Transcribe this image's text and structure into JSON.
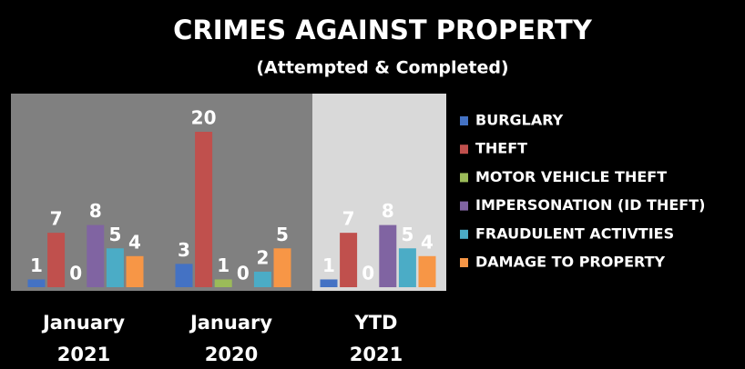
{
  "chart_data": {
    "type": "bar",
    "title": "CRIMES AGAINST PROPERTY",
    "subtitle": "(Attempted & Completed)",
    "categories": [
      "January 2021",
      "January 2020",
      "YTD 2021"
    ],
    "series": [
      {
        "name": "BURGLARY",
        "color": "#4472c4",
        "values": [
          1,
          3,
          1
        ]
      },
      {
        "name": "THEFT",
        "color": "#c0504d",
        "values": [
          7,
          20,
          7
        ]
      },
      {
        "name": "MOTOR VEHICLE THEFT",
        "color": "#9bbb59",
        "values": [
          0,
          1,
          0
        ]
      },
      {
        "name": "IMPERSONATION (ID THEFT)",
        "color": "#8064a2",
        "values": [
          8,
          0,
          8
        ]
      },
      {
        "name": "FRAUDULENT ACTIVTIES",
        "color": "#4bacc6",
        "values": [
          5,
          2,
          5
        ]
      },
      {
        "name": "DAMAGE TO PROPERTY",
        "color": "#f79646",
        "values": [
          4,
          5,
          4
        ]
      }
    ],
    "legend": "right"
  }
}
